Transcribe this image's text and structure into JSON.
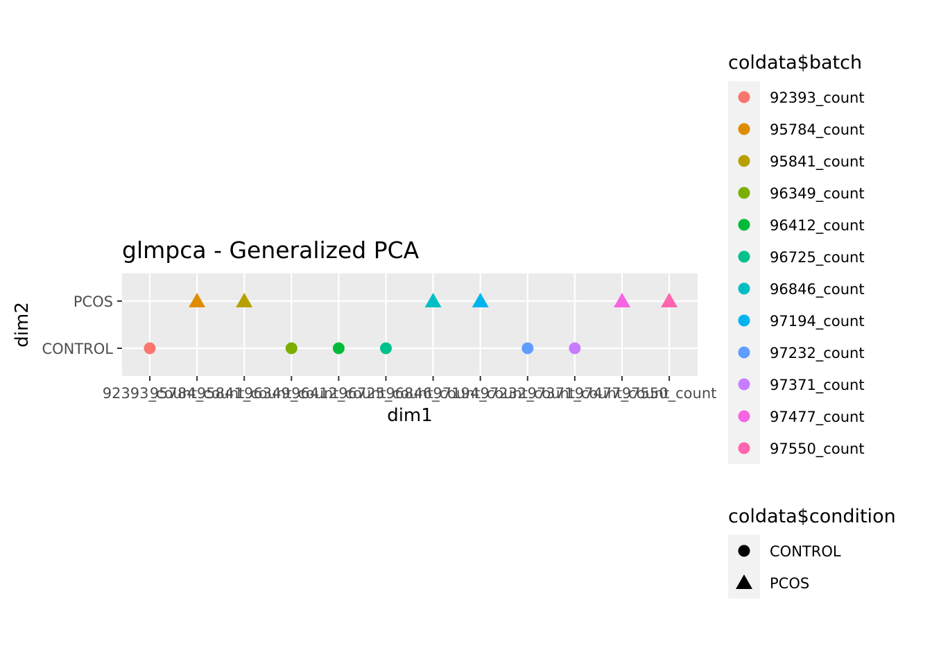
{
  "chart_data": {
    "type": "scatter",
    "title": "glmpca - Generalized PCA",
    "xlabel": "dim1",
    "ylabel": "dim2",
    "x_categories": [
      "92393_count",
      "95784_count",
      "95841_count",
      "96349_count",
      "96412_count",
      "96725_count",
      "96846_count",
      "97194_count",
      "97232_count",
      "97371_count",
      "97477_count",
      "97550_count"
    ],
    "y_categories": [
      "CONTROL",
      "PCOS"
    ],
    "points": [
      {
        "x": "92393_count",
        "y": "CONTROL",
        "batch": "92393_count",
        "condition": "CONTROL"
      },
      {
        "x": "95784_count",
        "y": "PCOS",
        "batch": "95784_count",
        "condition": "PCOS"
      },
      {
        "x": "95841_count",
        "y": "PCOS",
        "batch": "95841_count",
        "condition": "PCOS"
      },
      {
        "x": "96349_count",
        "y": "CONTROL",
        "batch": "96349_count",
        "condition": "CONTROL"
      },
      {
        "x": "96412_count",
        "y": "CONTROL",
        "batch": "96412_count",
        "condition": "CONTROL"
      },
      {
        "x": "96725_count",
        "y": "CONTROL",
        "batch": "96725_count",
        "condition": "CONTROL"
      },
      {
        "x": "96846_count",
        "y": "PCOS",
        "batch": "96846_count",
        "condition": "PCOS"
      },
      {
        "x": "97194_count",
        "y": "PCOS",
        "batch": "97194_count",
        "condition": "PCOS"
      },
      {
        "x": "97232_count",
        "y": "CONTROL",
        "batch": "97232_count",
        "condition": "CONTROL"
      },
      {
        "x": "97371_count",
        "y": "CONTROL",
        "batch": "97371_count",
        "condition": "CONTROL"
      },
      {
        "x": "97477_count",
        "y": "PCOS",
        "batch": "97477_count",
        "condition": "PCOS"
      },
      {
        "x": "97550_count",
        "y": "PCOS",
        "batch": "97550_count",
        "condition": "PCOS"
      }
    ],
    "batch_legend": {
      "title": "coldata$batch",
      "entries": [
        {
          "label": "92393_count",
          "color": "#F8766D"
        },
        {
          "label": "95784_count",
          "color": "#DE8C00"
        },
        {
          "label": "95841_count",
          "color": "#B79F00"
        },
        {
          "label": "96349_count",
          "color": "#7CAE00"
        },
        {
          "label": "96412_count",
          "color": "#00BA38"
        },
        {
          "label": "96725_count",
          "color": "#00C08B"
        },
        {
          "label": "96846_count",
          "color": "#00BFC4"
        },
        {
          "label": "97194_count",
          "color": "#00B4F0"
        },
        {
          "label": "97232_count",
          "color": "#619CFF"
        },
        {
          "label": "97371_count",
          "color": "#C77CFF"
        },
        {
          "label": "97477_count",
          "color": "#F564E3"
        },
        {
          "label": "97550_count",
          "color": "#FF64B0"
        }
      ]
    },
    "condition_legend": {
      "title": "coldata$condition",
      "entries": [
        {
          "label": "CONTROL",
          "shape": "circle"
        },
        {
          "label": "PCOS",
          "shape": "triangle"
        }
      ]
    },
    "grid": true,
    "legend_position": "right",
    "panel_background": "#EBEBEB"
  }
}
